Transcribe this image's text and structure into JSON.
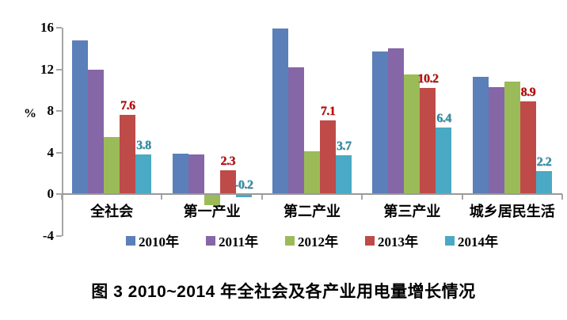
{
  "figure": {
    "caption": "图 3  2010~2014 年全社会及各产业用电量增长情况"
  },
  "chart_data": {
    "type": "bar",
    "title": "图 3  2010~2014 年全社会及各产业用电量增长情况",
    "ylabel": "%",
    "ylim": [
      -4,
      16
    ],
    "yticks": [
      16,
      12,
      8,
      4,
      0,
      -4
    ],
    "grid": false,
    "legend_position": "bottom",
    "axis_color": "#a6a6a6",
    "categories": [
      "全社会",
      "第一产业",
      "第二产业",
      "第三产业",
      "城乡居民生活"
    ],
    "series": [
      {
        "name": "2010年",
        "color": "#5b7fb9",
        "values": [
          14.8,
          3.9,
          15.9,
          13.7,
          11.3
        ],
        "data_labels": null
      },
      {
        "name": "2011年",
        "color": "#8566a7",
        "values": [
          12.0,
          3.8,
          12.2,
          14.0,
          10.3
        ],
        "data_labels": null
      },
      {
        "name": "2012年",
        "color": "#9bbb59",
        "values": [
          5.5,
          -1.0,
          4.1,
          11.5,
          10.8
        ],
        "data_labels": null
      },
      {
        "name": "2013年",
        "color": "#be4b48",
        "label_color": "#c00000",
        "values": [
          7.6,
          2.3,
          7.1,
          10.2,
          8.9
        ],
        "data_labels": [
          "7.6",
          "2.3",
          "7.1",
          "10.2",
          "8.9"
        ]
      },
      {
        "name": "2014年",
        "color": "#4aa9c4",
        "label_color": "#2791ae",
        "values": [
          3.8,
          -0.2,
          3.7,
          6.4,
          2.2
        ],
        "data_labels": [
          "3.8",
          "-0.2",
          "3.7",
          "6.4",
          "2.2"
        ]
      }
    ]
  }
}
